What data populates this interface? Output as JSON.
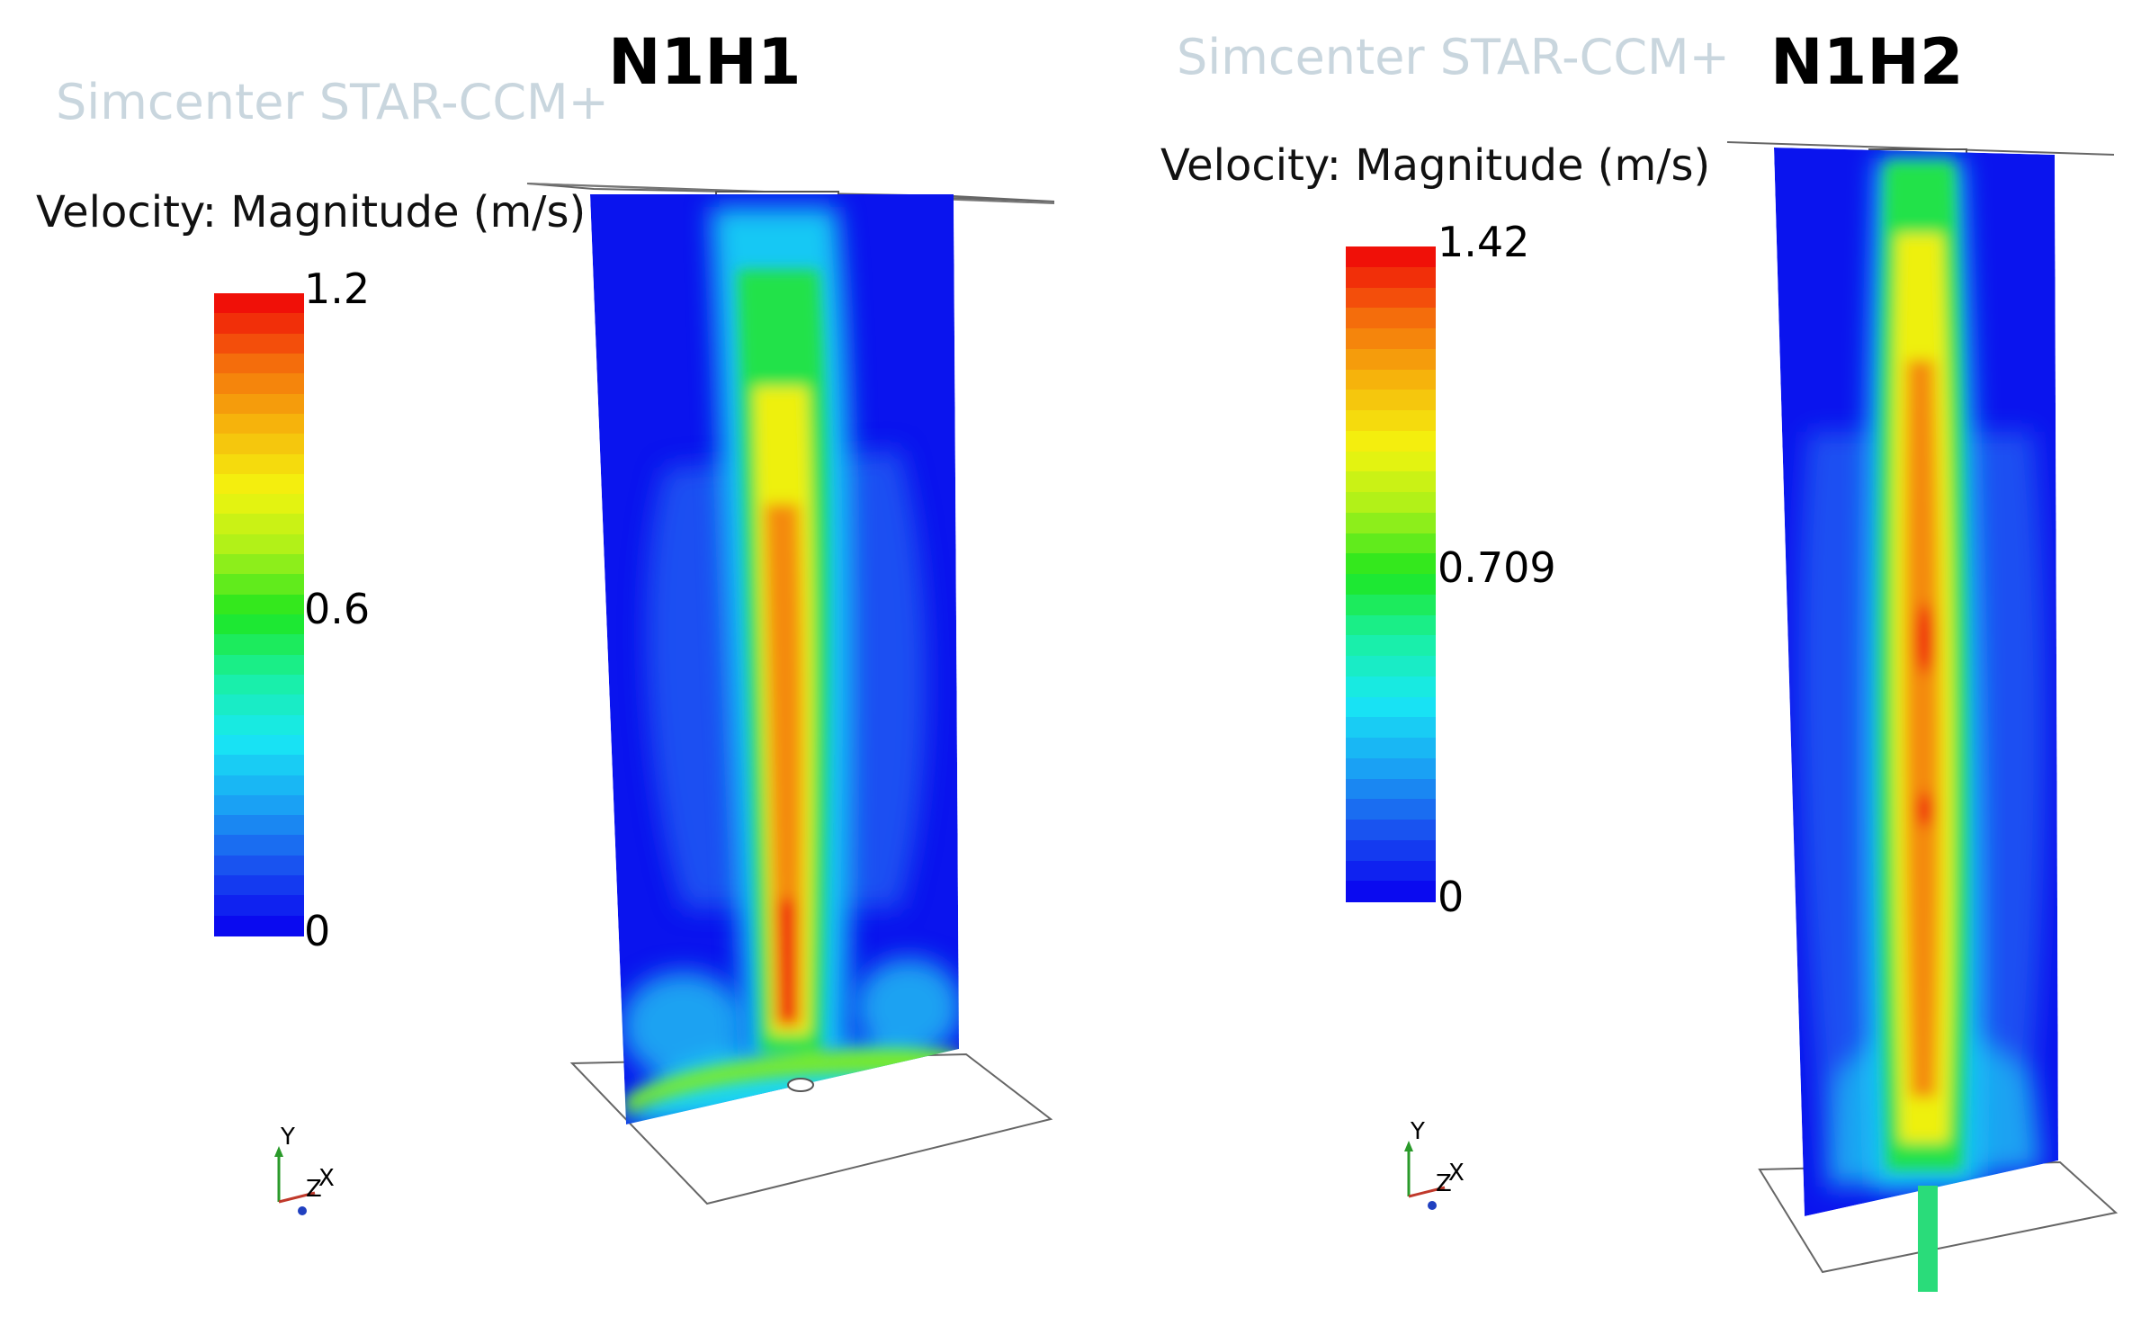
{
  "watermark": "Simcenter STAR-CCM+",
  "panels": [
    {
      "title": "N1H1",
      "colorbar": {
        "title": "Velocity: Magnitude (m/s)",
        "max": "1.2",
        "mid": "0.6",
        "min": "0"
      }
    },
    {
      "title": "N1H2",
      "colorbar": {
        "title": "Velocity: Magnitude (m/s)",
        "max": "1.42",
        "mid": "0.709",
        "min": "0"
      }
    }
  ],
  "triad": {
    "y": "Y",
    "z": "Z",
    "x": "X"
  },
  "colors": {
    "scale": [
      "#0a0af0",
      "#1a55f0",
      "#1aa6f4",
      "#18e8f4",
      "#19f0a0",
      "#1ee61e",
      "#a8f01a",
      "#f4f40e",
      "#f6b80c",
      "#f4700c",
      "#f01008"
    ],
    "background_blue": "#0a14ee",
    "watermark": "#c9d6de"
  }
}
